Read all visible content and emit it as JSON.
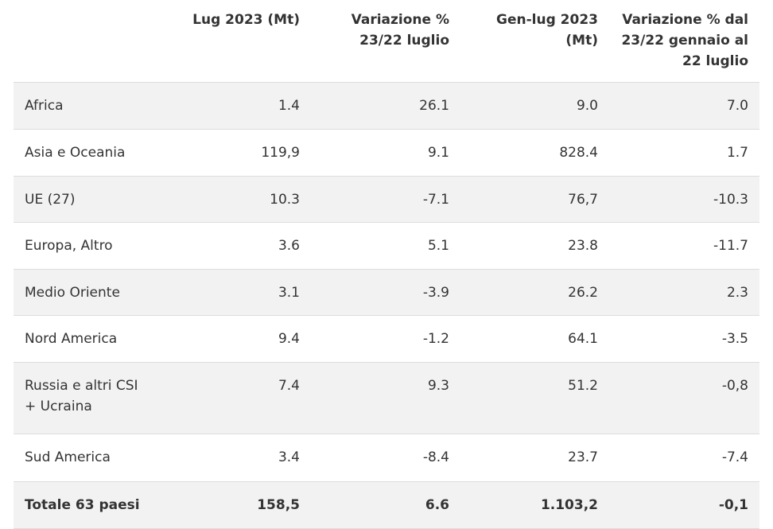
{
  "table": {
    "headers": [
      "",
      "Lug 2023 (Mt)",
      "Variazione % 23/22 luglio",
      "Gen-lug 2023 (Mt)",
      "Variazione % dal 23/22 gennaio al 22 luglio"
    ],
    "rows": [
      [
        "Africa",
        "1.4",
        "26.1",
        "9.0",
        "7.0"
      ],
      [
        "Asia e Oceania",
        "119,9",
        "9.1",
        "828.4",
        "1.7"
      ],
      [
        "UE (27)",
        "10.3",
        "-7.1",
        "76,7",
        "-10.3"
      ],
      [
        "Europa, Altro",
        "3.6",
        "5.1",
        "23.8",
        "-11.7"
      ],
      [
        "Medio Oriente",
        "3.1",
        "-3.9",
        "26.2",
        "2.3"
      ],
      [
        "Nord America",
        "9.4",
        "-1.2",
        "64.1",
        "-3.5"
      ],
      [
        "Russia e altri CSI + Ucraina",
        "7.4",
        "9.3",
        "51.2",
        "-0,8"
      ],
      [
        "Sud America",
        "3.4",
        "-8.4",
        "23.7",
        "-7.4"
      ],
      [
        "Totale 63 paesi",
        "158,5",
        "6.6",
        "1.103,2",
        "-0,1"
      ]
    ]
  }
}
